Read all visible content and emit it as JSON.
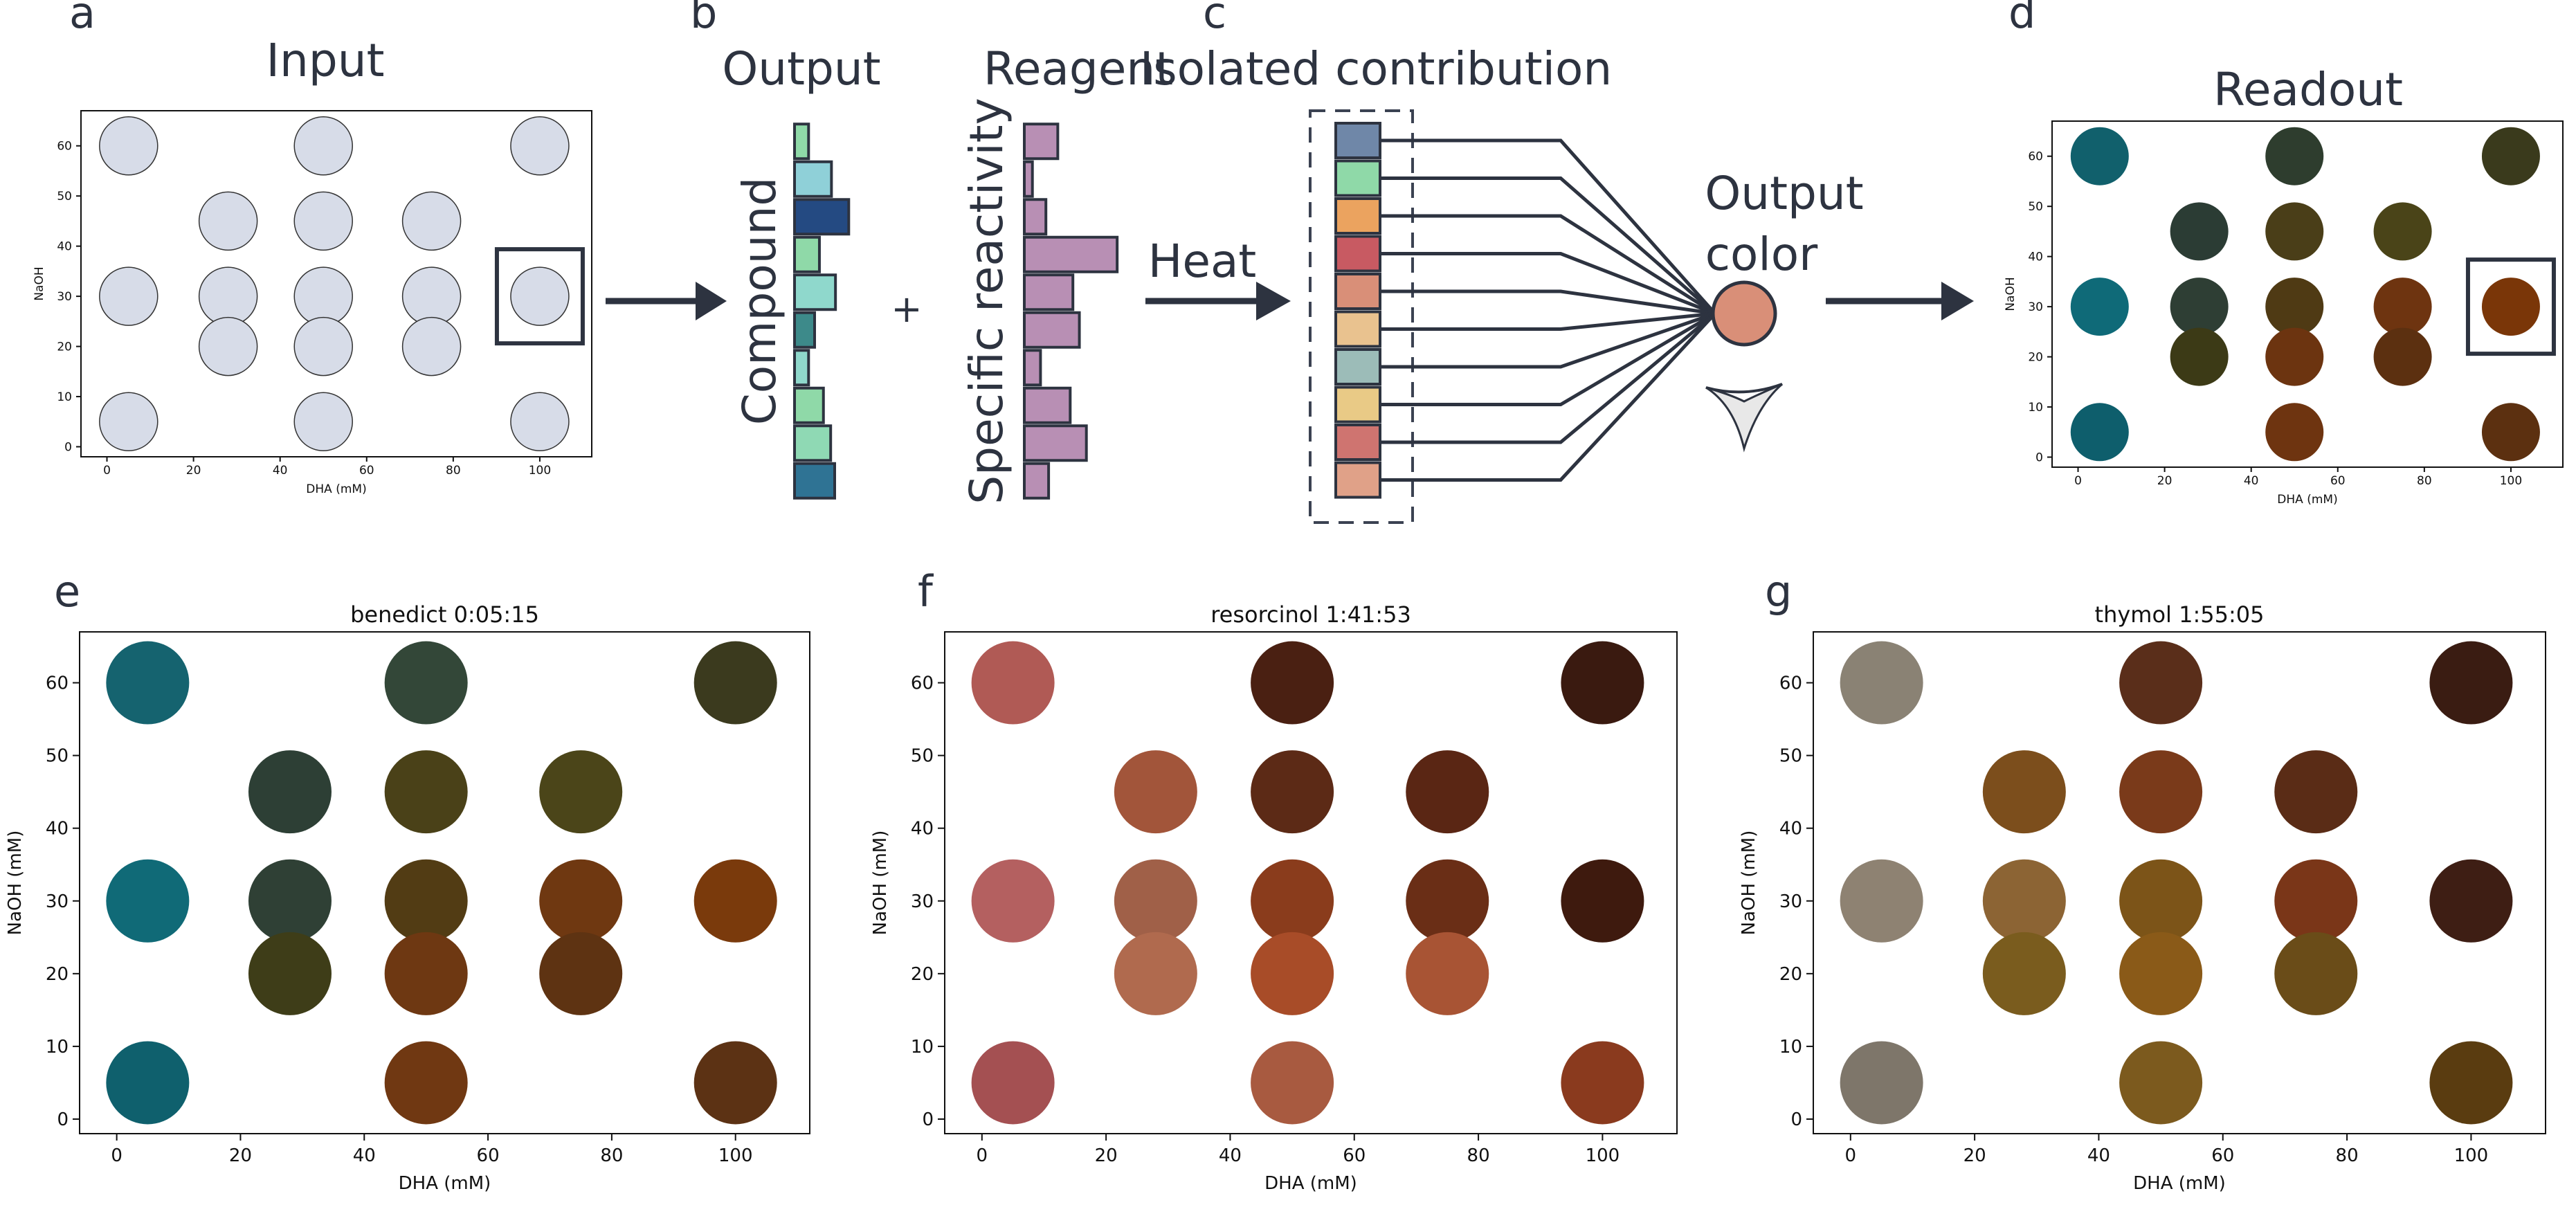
{
  "panel_labels": {
    "a": "a",
    "b": "b",
    "c": "c",
    "d": "d",
    "e": "e",
    "f": "f",
    "g": "g"
  },
  "schematic": {
    "input_title": "Input",
    "output_title": "Output",
    "reagent_title": "Reagent",
    "isolated_title": "Isolated contribution",
    "readout_title": "Readout",
    "compound_label": "Compound",
    "reactivity_label": "Specific reactivity",
    "plus": "+",
    "heat_label": "Heat",
    "output_color_line1": "Output",
    "output_color_line2": "color",
    "output_bars": [
      {
        "value": 0.35,
        "color": "#8fd9a8"
      },
      {
        "value": 0.92,
        "color": "#8fd0d8"
      },
      {
        "value": 1.35,
        "color": "#244a82"
      },
      {
        "value": 0.62,
        "color": "#8fd9a8"
      },
      {
        "value": 1.02,
        "color": "#8fd8cc"
      },
      {
        "value": 0.5,
        "color": "#3d8a8a"
      },
      {
        "value": 0.35,
        "color": "#8fd8cc"
      },
      {
        "value": 0.72,
        "color": "#8fd9a8"
      },
      {
        "value": 0.9,
        "color": "#8fd9b4"
      },
      {
        "value": 1.0,
        "color": "#2f7394"
      }
    ],
    "reagent_bars": [
      {
        "value": 0.62,
        "color": "#b88fb4"
      },
      {
        "value": 0.15,
        "color": "#b88fb4"
      },
      {
        "value": 0.4,
        "color": "#b88fb4"
      },
      {
        "value": 1.72,
        "color": "#b88fb4"
      },
      {
        "value": 0.9,
        "color": "#b88fb4"
      },
      {
        "value": 1.02,
        "color": "#b88fb4"
      },
      {
        "value": 0.3,
        "color": "#b88fb4"
      },
      {
        "value": 0.85,
        "color": "#b88fb4"
      },
      {
        "value": 1.15,
        "color": "#b88fb4"
      },
      {
        "value": 0.45,
        "color": "#b88fb4"
      }
    ],
    "contribution_colors": [
      "#6f87a8",
      "#8fd9a8",
      "#eba35f",
      "#c85a62",
      "#d98f78",
      "#e9c28f",
      "#9cbcb8",
      "#e9ca86",
      "#cf7470",
      "#e0a188"
    ],
    "output_color": "#d98f78"
  },
  "scatter_panels": {
    "input": {
      "xlabel": "DHA (mM)",
      "ylabel": "NaOH",
      "xticks": [
        0,
        20,
        40,
        60,
        80,
        100
      ],
      "yticks": [
        0,
        10,
        20,
        30,
        40,
        50,
        60
      ],
      "xlim": [
        -6,
        112
      ],
      "ylim": [
        -2,
        67
      ],
      "highlight": {
        "x": 100,
        "y": 30
      },
      "dots": [
        {
          "x": 5,
          "y": 60,
          "color": "#d7dce8"
        },
        {
          "x": 50,
          "y": 60,
          "color": "#d7dce8"
        },
        {
          "x": 100,
          "y": 60,
          "color": "#d7dce8"
        },
        {
          "x": 28,
          "y": 45,
          "color": "#d7dce8"
        },
        {
          "x": 50,
          "y": 45,
          "color": "#d7dce8"
        },
        {
          "x": 75,
          "y": 45,
          "color": "#d7dce8"
        },
        {
          "x": 5,
          "y": 30,
          "color": "#d7dce8"
        },
        {
          "x": 28,
          "y": 30,
          "color": "#d7dce8"
        },
        {
          "x": 50,
          "y": 30,
          "color": "#d7dce8"
        },
        {
          "x": 75,
          "y": 30,
          "color": "#d7dce8"
        },
        {
          "x": 100,
          "y": 30,
          "color": "#d7dce8"
        },
        {
          "x": 28,
          "y": 20,
          "color": "#d7dce8"
        },
        {
          "x": 50,
          "y": 20,
          "color": "#d7dce8"
        },
        {
          "x": 75,
          "y": 20,
          "color": "#d7dce8"
        },
        {
          "x": 5,
          "y": 5,
          "color": "#d7dce8"
        },
        {
          "x": 50,
          "y": 5,
          "color": "#d7dce8"
        },
        {
          "x": 100,
          "y": 5,
          "color": "#d7dce8"
        }
      ]
    },
    "readout": {
      "xlabel": "DHA (mM)",
      "ylabel": "NaOH",
      "xticks": [
        0,
        20,
        40,
        60,
        80,
        100
      ],
      "yticks": [
        0,
        10,
        20,
        30,
        40,
        50,
        60
      ],
      "xlim": [
        -6,
        112
      ],
      "ylim": [
        -2,
        67
      ],
      "highlight": {
        "x": 100,
        "y": 30
      },
      "dots": [
        {
          "x": 5,
          "y": 60,
          "color": "#11606c"
        },
        {
          "x": 50,
          "y": 60,
          "color": "#2e3d2e"
        },
        {
          "x": 100,
          "y": 60,
          "color": "#3a3a1c"
        },
        {
          "x": 28,
          "y": 45,
          "color": "#2b3c34"
        },
        {
          "x": 50,
          "y": 45,
          "color": "#4a3e18"
        },
        {
          "x": 75,
          "y": 45,
          "color": "#4a4418"
        },
        {
          "x": 5,
          "y": 30,
          "color": "#0f6a78"
        },
        {
          "x": 28,
          "y": 30,
          "color": "#2e3e34"
        },
        {
          "x": 50,
          "y": 30,
          "color": "#4f3a14"
        },
        {
          "x": 75,
          "y": 30,
          "color": "#6e3410"
        },
        {
          "x": 100,
          "y": 30,
          "color": "#7a3608"
        },
        {
          "x": 28,
          "y": 20,
          "color": "#3c3a16"
        },
        {
          "x": 50,
          "y": 20,
          "color": "#6c3410"
        },
        {
          "x": 75,
          "y": 20,
          "color": "#5c3010"
        },
        {
          "x": 5,
          "y": 5,
          "color": "#0e5e6c"
        },
        {
          "x": 50,
          "y": 5,
          "color": "#6e3410"
        },
        {
          "x": 100,
          "y": 5,
          "color": "#5c3010"
        }
      ]
    },
    "benedict": {
      "title": "benedict 0:05:15",
      "xlabel": "DHA (mM)",
      "ylabel": "NaOH (mM)",
      "xticks": [
        0,
        20,
        40,
        60,
        80,
        100
      ],
      "yticks": [
        0,
        10,
        20,
        30,
        40,
        50,
        60
      ],
      "xlim": [
        -6,
        112
      ],
      "ylim": [
        -2,
        67
      ],
      "dots": [
        {
          "x": 5,
          "y": 60,
          "color": "#15636f"
        },
        {
          "x": 50,
          "y": 60,
          "color": "#334738"
        },
        {
          "x": 100,
          "y": 60,
          "color": "#3b3a1e"
        },
        {
          "x": 28,
          "y": 45,
          "color": "#2d3f35"
        },
        {
          "x": 50,
          "y": 45,
          "color": "#4a4118"
        },
        {
          "x": 75,
          "y": 45,
          "color": "#4b4519"
        },
        {
          "x": 5,
          "y": 30,
          "color": "#106a77"
        },
        {
          "x": 28,
          "y": 30,
          "color": "#2f4035"
        },
        {
          "x": 50,
          "y": 30,
          "color": "#523c14"
        },
        {
          "x": 75,
          "y": 30,
          "color": "#6f3811"
        },
        {
          "x": 100,
          "y": 30,
          "color": "#7a3a0c"
        },
        {
          "x": 28,
          "y": 20,
          "color": "#3e3d18"
        },
        {
          "x": 50,
          "y": 20,
          "color": "#6e3812"
        },
        {
          "x": 75,
          "y": 20,
          "color": "#5e3312"
        },
        {
          "x": 5,
          "y": 5,
          "color": "#0f606d"
        },
        {
          "x": 50,
          "y": 5,
          "color": "#703812"
        },
        {
          "x": 100,
          "y": 5,
          "color": "#5c3214"
        }
      ]
    },
    "resorcinol": {
      "title": "resorcinol 1:41:53",
      "xlabel": "DHA (mM)",
      "ylabel": "NaOH (mM)",
      "xticks": [
        0,
        20,
        40,
        60,
        80,
        100
      ],
      "yticks": [
        0,
        10,
        20,
        30,
        40,
        50,
        60
      ],
      "xlim": [
        -6,
        112
      ],
      "ylim": [
        -2,
        67
      ],
      "dots": [
        {
          "x": 5,
          "y": 60,
          "color": "#b05a55"
        },
        {
          "x": 50,
          "y": 60,
          "color": "#4a2012"
        },
        {
          "x": 100,
          "y": 60,
          "color": "#3a1a10"
        },
        {
          "x": 28,
          "y": 45,
          "color": "#a2553a"
        },
        {
          "x": 50,
          "y": 45,
          "color": "#5c2a16"
        },
        {
          "x": 75,
          "y": 45,
          "color": "#5a2614"
        },
        {
          "x": 5,
          "y": 30,
          "color": "#b46060"
        },
        {
          "x": 28,
          "y": 30,
          "color": "#a06048"
        },
        {
          "x": 50,
          "y": 30,
          "color": "#8a3c1c"
        },
        {
          "x": 75,
          "y": 30,
          "color": "#6a2e16"
        },
        {
          "x": 100,
          "y": 30,
          "color": "#3e1a0e"
        },
        {
          "x": 28,
          "y": 20,
          "color": "#b06a4e"
        },
        {
          "x": 50,
          "y": 20,
          "color": "#a84c28"
        },
        {
          "x": 75,
          "y": 20,
          "color": "#a85434"
        },
        {
          "x": 5,
          "y": 5,
          "color": "#a45052"
        },
        {
          "x": 50,
          "y": 5,
          "color": "#a85a40"
        },
        {
          "x": 100,
          "y": 5,
          "color": "#8a3a1e"
        }
      ]
    },
    "thymol": {
      "title": "thymol 1:55:05",
      "xlabel": "DHA (mM)",
      "ylabel": "NaOH (mM)",
      "xticks": [
        0,
        20,
        40,
        60,
        80,
        100
      ],
      "yticks": [
        0,
        10,
        20,
        30,
        40,
        50,
        60
      ],
      "xlim": [
        -6,
        112
      ],
      "ylim": [
        -2,
        67
      ],
      "dots": [
        {
          "x": 5,
          "y": 60,
          "color": "#8a8274"
        },
        {
          "x": 50,
          "y": 60,
          "color": "#5a2e1a"
        },
        {
          "x": 100,
          "y": 60,
          "color": "#3a1c12"
        },
        {
          "x": 28,
          "y": 45,
          "color": "#7c4e1c"
        },
        {
          "x": 50,
          "y": 45,
          "color": "#7a3a1a"
        },
        {
          "x": 75,
          "y": 45,
          "color": "#5a2c16"
        },
        {
          "x": 5,
          "y": 30,
          "color": "#8e8272"
        },
        {
          "x": 28,
          "y": 30,
          "color": "#8c6434"
        },
        {
          "x": 50,
          "y": 30,
          "color": "#7c5418"
        },
        {
          "x": 75,
          "y": 30,
          "color": "#7a3618"
        },
        {
          "x": 100,
          "y": 30,
          "color": "#3e1e14"
        },
        {
          "x": 28,
          "y": 20,
          "color": "#7a5c1e"
        },
        {
          "x": 50,
          "y": 20,
          "color": "#8a5a18"
        },
        {
          "x": 75,
          "y": 20,
          "color": "#6a4c18"
        },
        {
          "x": 5,
          "y": 5,
          "color": "#7e766a"
        },
        {
          "x": 50,
          "y": 5,
          "color": "#7c5a1e"
        },
        {
          "x": 100,
          "y": 5,
          "color": "#5a3c10"
        }
      ]
    }
  }
}
